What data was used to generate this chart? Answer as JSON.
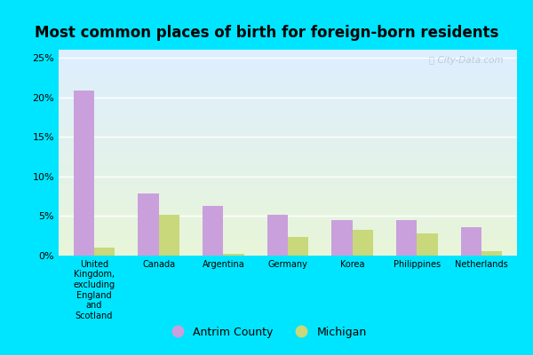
{
  "title": "Most common places of birth for foreign-born residents",
  "categories": [
    "United\nKingdom,\nexcluding\nEngland\nand\nScotland",
    "Canada",
    "Argentina",
    "Germany",
    "Korea",
    "Philippines",
    "Netherlands"
  ],
  "antrim_values": [
    0.208,
    0.079,
    0.063,
    0.052,
    0.045,
    0.045,
    0.036
  ],
  "michigan_values": [
    0.01,
    0.052,
    0.002,
    0.024,
    0.032,
    0.028,
    0.006
  ],
  "antrim_color": "#c9a0dc",
  "michigan_color": "#c8d87a",
  "bar_width": 0.32,
  "ylim": [
    0,
    0.26
  ],
  "yticks": [
    0,
    0.05,
    0.1,
    0.15,
    0.2,
    0.25
  ],
  "yticklabels": [
    "0%",
    "5%",
    "10%",
    "15%",
    "20%",
    "25%"
  ],
  "legend_antrim": "Antrim County",
  "legend_michigan": "Michigan",
  "bg_top_color": "#ddeeff",
  "bg_bottom_color": "#e8f5d8",
  "grid_color": "#ffffff",
  "outer_bg": "#00e5ff",
  "watermark": "ⓘ City-Data.com",
  "title_fontsize": 12,
  "tick_fontsize": 8,
  "legend_fontsize": 9
}
